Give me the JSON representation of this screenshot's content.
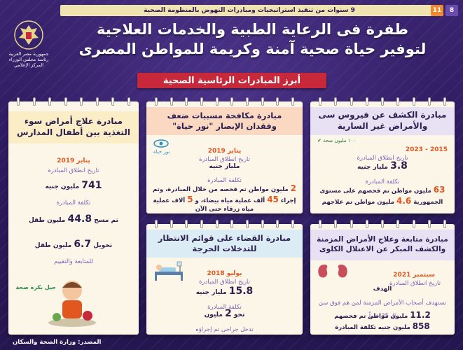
{
  "topbar": {
    "text": "9 سنوات من تنفيذ استراتيجيات ومبادرات النهوض بالمنظومة الصحية",
    "page_a": "8",
    "page_b": "11"
  },
  "logo": {
    "line1": "جمهورية مصر العربية",
    "line2": "رئاسة مجلس الوزراء",
    "line3": "المركز الإعلامي"
  },
  "title": {
    "line1": "طفرة فى الرعاية الطبية والخدمات العلاجية",
    "line2": "لتوفير حياة صحية آمنة وكريمة للمواطن المصرى"
  },
  "ribbon": "أبرز المبادرات الرئاسية الصحية",
  "cards": {
    "cvirus": {
      "title": "مبادرة الكشف عن فيروس سى والأمراض غير السارية",
      "logo_text": "١٠٠ مليون صحة",
      "year": "2015 - 2023",
      "start_label": "تاريخ انطلاق المبادرة",
      "cost_value": "3.8",
      "cost_unit": "مليار جنيه",
      "cost_label": "تكلفة المبادرة",
      "stat1_value": "63",
      "stat1_text": "مليون مواطن تم فحصهم على مستوى الجمهورية",
      "stat2_value": "4.6",
      "stat2_text": "مليون مواطن تم علاجهم"
    },
    "vision": {
      "title": "مبادرة مكافحة مسببات ضعف وفقدان الإبصار \"نور حياة\"",
      "logo_text": "نور حياة",
      "year": "يناير 2019",
      "start_label": "تاريخ انطلاق المبادرة",
      "cost_value": "ملياز جنيه",
      "cost_label": "تكلفة المبادرة",
      "stat1_value": "2",
      "stat1_text": "مليون مواطن تم فحصه من خلال المبادرة، وتم إجراء",
      "stat2_value": "45",
      "stat2_text": "ألف عملية مياه بيضاء، و",
      "stat3_value": "5",
      "stat3_text": "آلاف عملية مياه زرقاء حتى الآن"
    },
    "malnutrition": {
      "title": "مبادرة علاج أمراض سوء التغذية بين أطفال المدارس",
      "year": "يناير 2019",
      "start_label": "تاريخ انطلاق المبادرة",
      "cost_value": "741",
      "cost_unit": "مليون جنيه",
      "cost_label": "تكلفة المبادرة",
      "stat1_prefix": "تم مسح",
      "stat1_value": "44.8",
      "stat1_unit": "مليون طفل",
      "stat2_prefix": "تحويل",
      "stat2_value": "6.7",
      "stat2_unit": "مليون طفل",
      "stat2_text": "للمتابعة والتقييم",
      "logo_text": "جيل بكرة صحة"
    },
    "waitlist": {
      "title": "مبادرة القضاء على قوائم الانتظار للتدخلات الحرجة",
      "year": "يوليو 2018",
      "start_label": "تاريخ انطلاق المبادرة",
      "cost_value": "15.8",
      "cost_unit": "مليار جنيه",
      "cost_label": "تكلفة المبادرة",
      "stat_prefix": "نحو",
      "stat_value": "2",
      "stat_unit": "مليون",
      "stat_text": "تدخل جراحى تم إجراؤه"
    },
    "kidney": {
      "title": "مبادرة متابعة وعلاج الأمراض المزمنة والكشف المبكر عن الاعتلال الكلوى",
      "year": "سبتمبر 2021",
      "start_label": "تاريخ انطلاق المبادرة",
      "goal_label": "الهدف",
      "goal_text": "تستهدف أصحاب الأمراض المزمنة لمن هم فوق سن الـ 35 عاماً",
      "stat1_value": "11.2",
      "stat1_text": "مليون مواطن تم فحصهم",
      "stat2_value": "858",
      "stat2_text": "مليون جنيه تكلفة المبادرة"
    }
  },
  "source": "المصدر: وزارة الصحة والسكان",
  "colors": {
    "accent": "#e2571f",
    "purple": "#2b1a57",
    "ribbon": "#c7283a"
  }
}
